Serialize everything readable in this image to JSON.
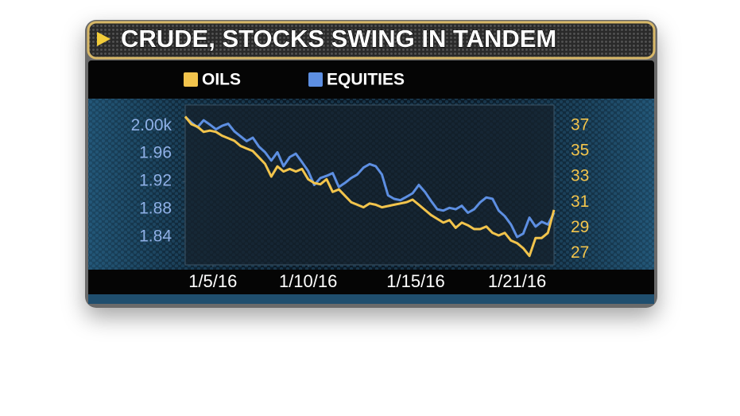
{
  "chart_data": {
    "type": "line",
    "title": "CRUDE, STOCKS SWING IN TANDEM",
    "xlim": [
      0,
      60
    ],
    "xticks": [
      {
        "value": 4.5,
        "label": "1/5/16"
      },
      {
        "value": 20,
        "label": "1/10/16"
      },
      {
        "value": 37.5,
        "label": "1/15/16"
      },
      {
        "value": 54,
        "label": "1/21/16"
      }
    ],
    "ylim": [
      1.8,
      2.03
    ],
    "yticks": [
      1.84,
      1.88,
      1.92,
      1.96,
      {
        "value": 2.0,
        "label": "2.00k"
      }
    ],
    "y2lim": [
      26.1,
      38.6
    ],
    "y2ticks": [
      27,
      29,
      31,
      33,
      35,
      37
    ],
    "grid": false,
    "series": [
      {
        "name": "OILS",
        "color": "#f2c44c",
        "axis": "y2",
        "values": [
          37.7,
          37.1,
          36.9,
          36.5,
          36.6,
          36.5,
          36.2,
          36.0,
          35.8,
          35.4,
          35.2,
          35.0,
          34.5,
          34.0,
          33.0,
          33.8,
          33.4,
          33.6,
          33.4,
          33.6,
          32.8,
          32.5,
          32.4,
          32.8,
          31.8,
          32.0,
          31.5,
          31.0,
          30.8,
          30.6,
          30.9,
          30.8,
          30.6,
          30.7,
          30.8,
          30.9,
          31.0,
          31.2,
          30.8,
          30.4,
          30.0,
          29.7,
          29.4,
          29.6,
          29.0,
          29.4,
          29.2,
          28.9,
          28.9,
          29.1,
          28.6,
          28.4,
          28.6,
          28.0,
          27.8,
          27.4,
          26.8,
          28.2,
          28.2,
          28.6,
          30.4
        ]
      },
      {
        "name": "EQUITIES",
        "color": "#5d8fe2",
        "values": [
          2.013,
          2.005,
          1.998,
          2.008,
          2.002,
          1.995,
          2.0,
          2.003,
          1.992,
          1.985,
          1.978,
          1.983,
          1.97,
          1.962,
          1.95,
          1.962,
          1.942,
          1.955,
          1.96,
          1.948,
          1.935,
          1.915,
          1.925,
          1.928,
          1.932,
          1.912,
          1.918,
          1.925,
          1.93,
          1.94,
          1.945,
          1.942,
          1.93,
          1.9,
          1.895,
          1.893,
          1.898,
          1.903,
          1.915,
          1.905,
          1.892,
          1.88,
          1.878,
          1.882,
          1.88,
          1.885,
          1.875,
          1.88,
          1.89,
          1.897,
          1.895,
          1.878,
          1.87,
          1.858,
          1.84,
          1.845,
          1.868,
          1.855,
          1.862,
          1.858,
          1.875
        ]
      }
    ]
  }
}
